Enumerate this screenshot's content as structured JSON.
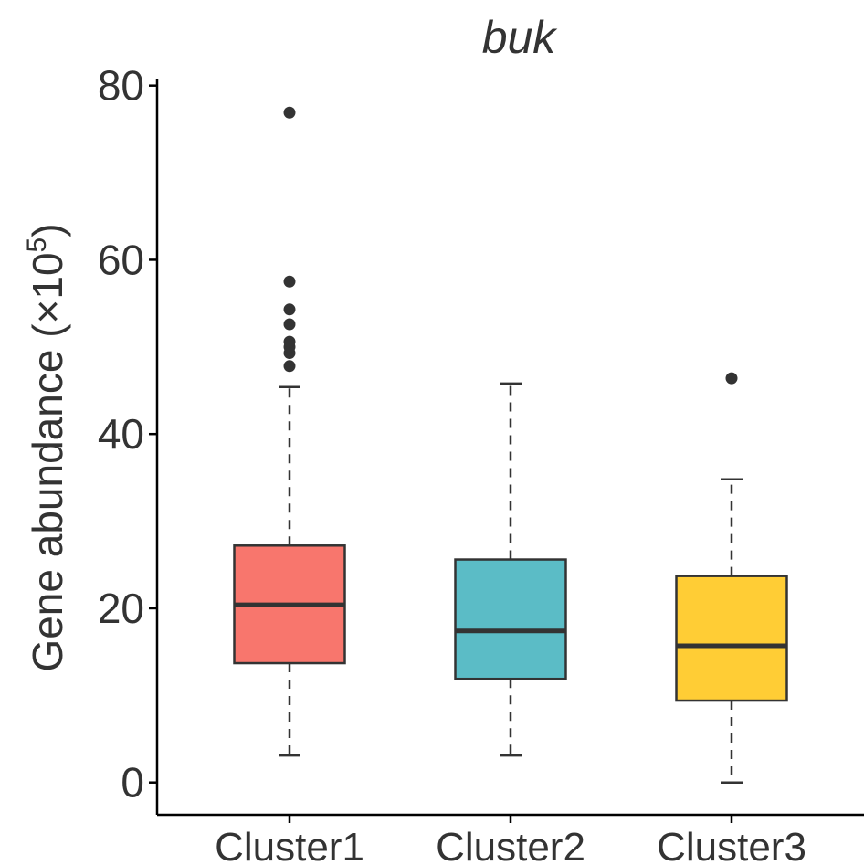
{
  "chart_data": {
    "type": "boxplot",
    "title": "buk",
    "ylabel": {
      "text": "Gene abundance (×10",
      "superscript": "5",
      "close": ")"
    },
    "xlabel": "",
    "ylim": [
      -3.7,
      80.7
    ],
    "y_ticks": [
      {
        "value": 0,
        "label": "0"
      },
      {
        "value": 20,
        "label": "20"
      },
      {
        "value": 40,
        "label": "40"
      },
      {
        "value": 60,
        "label": "60"
      },
      {
        "value": 80,
        "label": "80"
      }
    ],
    "categories": [
      "Cluster1",
      "Cluster2",
      "Cluster3"
    ],
    "boxes": [
      {
        "category": "Cluster1",
        "color": "#F8766D",
        "whisker_low": 3.1,
        "q1": 13.7,
        "median": 20.4,
        "q3": 27.2,
        "whisker_high": 45.4,
        "outliers": [
          47.8,
          49.3,
          50.0,
          50.6,
          52.6,
          54.3,
          57.5,
          76.9
        ]
      },
      {
        "category": "Cluster2",
        "color": "#5BBCC6",
        "whisker_low": 3.1,
        "q1": 11.9,
        "median": 17.4,
        "q3": 25.6,
        "whisker_high": 45.8,
        "outliers": []
      },
      {
        "category": "Cluster3",
        "color": "#FFCD35",
        "whisker_low": 0.0,
        "q1": 9.4,
        "median": 15.7,
        "q3": 23.7,
        "whisker_high": 34.8,
        "outliers": [
          46.4
        ]
      }
    ],
    "grid": false,
    "legend": "none"
  }
}
